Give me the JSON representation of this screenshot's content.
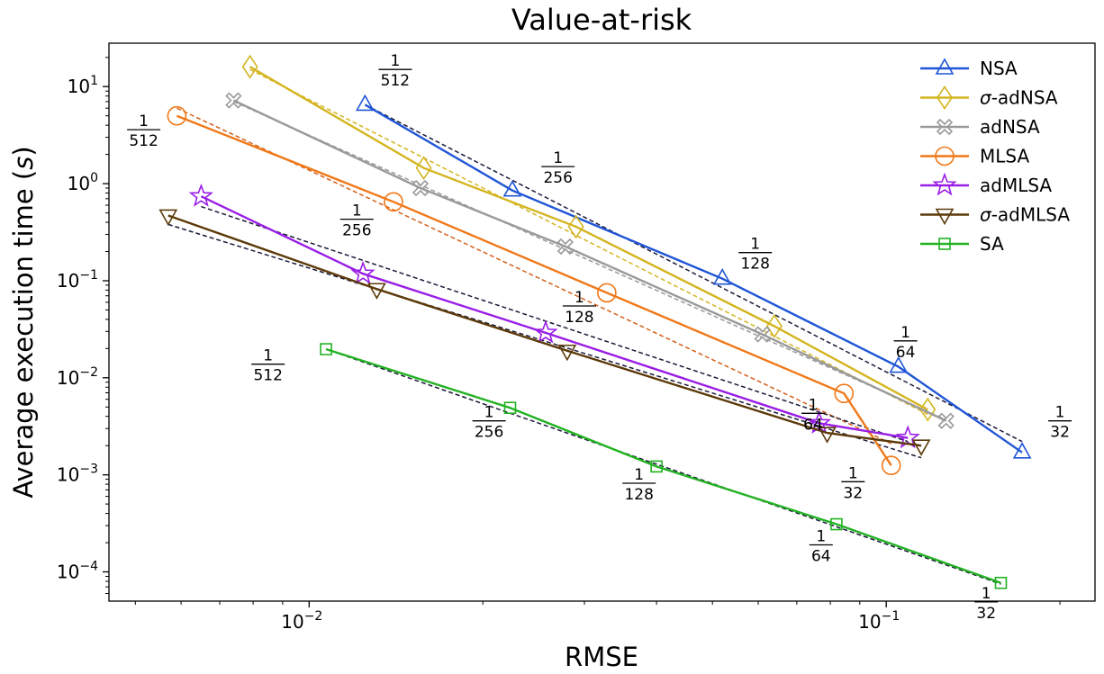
{
  "chart_data": {
    "type": "line",
    "title": "Value-at-risk",
    "xlabel": "RMSE",
    "ylabel_prefix": "Average execution time (",
    "ylabel_var": "s",
    "ylabel_suffix": ")",
    "x_scale": "log",
    "y_scale": "log",
    "xlim": [
      0.0045,
      0.23
    ],
    "ylim": [
      5e-05,
      28
    ],
    "x_ticks": [
      {
        "value": 0.01,
        "base": "10",
        "exp": "−2"
      },
      {
        "value": 0.1,
        "base": "10",
        "exp": "−1"
      }
    ],
    "y_ticks": [
      {
        "value": 10,
        "base": "10",
        "exp": "1"
      },
      {
        "value": 1,
        "base": "10",
        "exp": "0"
      },
      {
        "value": 0.1,
        "base": "10",
        "exp": "−1"
      },
      {
        "value": 0.01,
        "base": "10",
        "exp": "−2"
      },
      {
        "value": 0.001,
        "base": "10",
        "exp": "−3"
      },
      {
        "value": 0.0001,
        "base": "10",
        "exp": "−4"
      }
    ],
    "grid": false,
    "legend_position": "top-right",
    "series": [
      {
        "name": "NSA",
        "color": "#1f55d6",
        "marker": "triangle-up",
        "x": [
          0.0125,
          0.0225,
          0.052,
          0.105,
          0.172
        ],
        "y": [
          6.5,
          0.85,
          0.105,
          0.013,
          0.0017
        ],
        "fit_x": [
          0.0125,
          0.172
        ],
        "fit_y": [
          6.5,
          0.0022
        ]
      },
      {
        "name": "σ-adNSA",
        "color": "#d4b520",
        "marker": "diamond",
        "x": [
          0.0079,
          0.0158,
          0.029,
          0.064,
          0.118
        ],
        "y": [
          16,
          1.45,
          0.36,
          0.034,
          0.0047
        ],
        "fit_x": [
          0.0079,
          0.118
        ],
        "fit_y": [
          15,
          0.0042
        ]
      },
      {
        "name": "adNSA",
        "color": "#9a9a9a",
        "marker": "cross",
        "x": [
          0.0074,
          0.0156,
          0.0278,
          0.061,
          0.127
        ],
        "y": [
          7.2,
          0.9,
          0.225,
          0.028,
          0.0036
        ],
        "fit_x": [
          0.0074,
          0.127
        ],
        "fit_y": [
          7.0,
          0.0037
        ]
      },
      {
        "name": "MLSA",
        "color": "#f07818",
        "marker": "circle",
        "x": [
          0.0059,
          0.014,
          0.0328,
          0.0845,
          0.102
        ],
        "y": [
          5.0,
          0.65,
          0.075,
          0.0069,
          0.00125
        ],
        "fit_x": [
          0.0059,
          0.102
        ],
        "fit_y": [
          6.0,
          0.0021
        ]
      },
      {
        "name": "adMLSA",
        "color": "#9a1ee6",
        "marker": "star",
        "x": [
          0.0065,
          0.0124,
          0.0257,
          0.0765,
          0.109
        ],
        "y": [
          0.74,
          0.118,
          0.029,
          0.0034,
          0.0024
        ],
        "fit_x": [
          0.0065,
          0.109
        ],
        "fit_y": [
          0.58,
          0.0022
        ]
      },
      {
        "name": "σ-adMLSA",
        "color": "#5c3a0a",
        "marker": "triangle-down",
        "x": [
          0.0057,
          0.0131,
          0.028,
          0.079,
          0.115
        ],
        "y": [
          0.47,
          0.082,
          0.019,
          0.0027,
          0.002
        ],
        "fit_x": [
          0.0057,
          0.115
        ],
        "fit_y": [
          0.38,
          0.0015
        ]
      },
      {
        "name": "SA",
        "color": "#22b222",
        "marker": "square",
        "x": [
          0.0107,
          0.0223,
          0.04,
          0.082,
          0.158
        ],
        "y": [
          0.0197,
          0.0049,
          0.00122,
          0.00031,
          7.7e-05
        ],
        "fit_x": [
          0.0107,
          0.158
        ],
        "fit_y": [
          0.0197,
          7.5e-05
        ]
      }
    ],
    "annotations": [
      {
        "numerator": "1",
        "denominator": "512",
        "x": 0.0141,
        "y": 15
      },
      {
        "numerator": "1",
        "denominator": "256",
        "x": 0.027,
        "y": 1.5
      },
      {
        "numerator": "1",
        "denominator": "128",
        "x": 0.0593,
        "y": 0.195
      },
      {
        "numerator": "1",
        "denominator": "64",
        "x": 0.108,
        "y": 0.024
      },
      {
        "numerator": "1",
        "denominator": "32",
        "x": 0.2,
        "y": 0.0036
      },
      {
        "numerator": "1",
        "denominator": "512",
        "x": 0.00517,
        "y": 3.6
      },
      {
        "numerator": "1",
        "denominator": "256",
        "x": 0.0121,
        "y": 0.43
      },
      {
        "numerator": "1",
        "denominator": "128",
        "x": 0.0294,
        "y": 0.055
      },
      {
        "numerator": "1",
        "denominator": "64",
        "x": 0.0747,
        "y": 0.0043
      },
      {
        "numerator": "1",
        "denominator": "32",
        "x": 0.0876,
        "y": 0.00085
      },
      {
        "numerator": "1",
        "denominator": "512",
        "x": 0.00849,
        "y": 0.0138
      },
      {
        "numerator": "1",
        "denominator": "256",
        "x": 0.0205,
        "y": 0.0036
      },
      {
        "numerator": "1",
        "denominator": "128",
        "x": 0.0373,
        "y": 0.00082
      },
      {
        "numerator": "1",
        "denominator": "64",
        "x": 0.0771,
        "y": 0.00019
      },
      {
        "numerator": "1",
        "denominator": "32",
        "x": 0.149,
        "y": 4.9e-05
      }
    ]
  }
}
